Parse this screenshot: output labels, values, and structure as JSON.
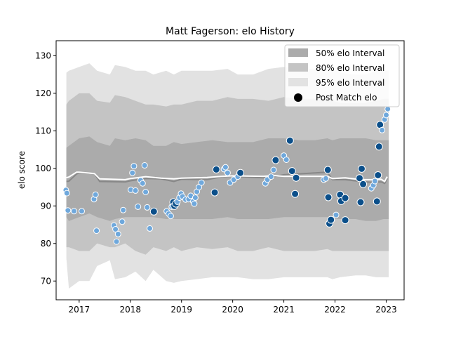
{
  "chart_data": {
    "type": "scatter",
    "title": "Matt Fagerson: elo History",
    "xlabel": "",
    "ylabel": "elo score",
    "xlim": [
      2016.55,
      2023.35
    ],
    "ylim": [
      65,
      134
    ],
    "x_ticks": [
      2017,
      2018,
      2019,
      2020,
      2021,
      2022,
      2023
    ],
    "x_tick_labels": [
      "2017",
      "2018",
      "2019",
      "2020",
      "2021",
      "2022",
      "2023"
    ],
    "y_ticks": [
      70,
      80,
      90,
      100,
      110,
      120,
      130
    ],
    "y_tick_labels": [
      "70",
      "80",
      "90",
      "100",
      "110",
      "120",
      "130"
    ],
    "grid": false,
    "legend_position": "top-right",
    "legend": [
      {
        "label": "50% elo Interval",
        "kind": "band",
        "color": "#ababab"
      },
      {
        "label": "80% elo Interval",
        "kind": "band",
        "color": "#c4c4c4"
      },
      {
        "label": "95% elo Interval",
        "kind": "band",
        "color": "#e2e2e2"
      },
      {
        "label": "Post Match elo",
        "kind": "marker",
        "color": "#000000"
      }
    ],
    "colors": {
      "band50": "#ababab",
      "band80": "#c4c4c4",
      "band95": "#e2e2e2",
      "mean_line": "#888888",
      "median_line": "#ffffff",
      "point_light": "#6fa8dc",
      "point_dark": "#0b4f8a"
    },
    "bands": {
      "x": [
        2016.75,
        2016.8,
        2017.0,
        2017.2,
        2017.35,
        2017.6,
        2017.7,
        2017.9,
        2018.1,
        2018.3,
        2018.45,
        2018.7,
        2018.85,
        2019.0,
        2019.3,
        2019.6,
        2019.9,
        2020.1,
        2020.4,
        2020.7,
        2021.0,
        2021.3,
        2021.6,
        2021.85,
        2021.95,
        2022.1,
        2022.4,
        2022.6,
        2022.8,
        2022.95,
        2023.05
      ],
      "p95_hi": [
        125.5,
        126,
        127,
        128,
        126,
        125,
        127.5,
        127,
        126,
        126,
        125,
        126,
        125,
        126,
        126,
        126,
        126.5,
        125,
        125,
        126.5,
        127,
        126.5,
        126.5,
        128,
        126.5,
        125.5,
        125,
        125,
        126,
        126,
        126
      ],
      "p95_lo": [
        76,
        68,
        70,
        70,
        74,
        75.5,
        70.5,
        71,
        72.5,
        70,
        73,
        70,
        69.5,
        70,
        70.5,
        71,
        71,
        71,
        70.5,
        70.5,
        71,
        71,
        71,
        71,
        70.5,
        71,
        71.5,
        71.5,
        71,
        71,
        71
      ],
      "p80_hi": [
        117,
        118,
        120,
        120,
        118,
        117.5,
        119.5,
        119,
        118,
        117,
        117,
        116.5,
        117,
        117,
        118,
        118,
        119,
        118.5,
        118.5,
        118,
        119,
        118.5,
        118.5,
        119,
        118,
        117.5,
        117.5,
        117.5,
        118,
        118.5,
        118.5
      ],
      "p80_lo": [
        79,
        79,
        78,
        78,
        80,
        79,
        79,
        80,
        78,
        77,
        79,
        78,
        79,
        78,
        79,
        78.5,
        79,
        78,
        78,
        79,
        78,
        78,
        78,
        78.5,
        78,
        78,
        78,
        78,
        78,
        78,
        78
      ],
      "p50_hi": [
        105.5,
        106,
        108,
        108.5,
        107,
        106,
        108,
        107.5,
        108,
        107.5,
        106,
        106,
        107,
        106.5,
        107,
        107.5,
        107,
        107,
        107,
        108,
        108,
        107.5,
        107.5,
        108,
        107.5,
        108,
        108,
        108,
        107.5,
        107.5,
        107.5
      ],
      "p50_lo": [
        87,
        86,
        87,
        88,
        87,
        86,
        86.5,
        87,
        87,
        87,
        87,
        86.5,
        86.5,
        86.5,
        86.5,
        86.5,
        87,
        86.5,
        86.5,
        86.5,
        87,
        87,
        87,
        87,
        86.5,
        86.5,
        86.5,
        86,
        86,
        86.5,
        86.5
      ]
    },
    "lines": {
      "mean_x": [
        2016.75,
        2016.8,
        2016.95,
        2017.0,
        2017.3,
        2017.4,
        2017.9,
        2018.0,
        2018.3,
        2018.6,
        2018.85,
        2019.0,
        2019.5,
        2019.8,
        2020.0,
        2020.6,
        2020.8,
        2021.0,
        2021.5,
        2021.85,
        2021.95,
        2022.2,
        2022.5,
        2022.7,
        2022.9,
        2022.97,
        2023.02
      ],
      "mean_y": [
        96.5,
        96.6,
        98.5,
        98.8,
        98.6,
        96.5,
        96.4,
        96.7,
        97.3,
        97.2,
        96.5,
        97.1,
        97.0,
        97.8,
        97.9,
        97.5,
        97.8,
        98.3,
        98.7,
        99.0,
        97.0,
        97.0,
        96.5,
        96.3,
        96.4,
        96.0,
        97.3
      ],
      "median_x": [
        2016.75,
        2016.8,
        2016.95,
        2017.0,
        2017.3,
        2017.4,
        2017.9,
        2018.0,
        2018.3,
        2018.6,
        2018.85,
        2019.0,
        2019.5,
        2019.8,
        2020.0,
        2020.6,
        2020.8,
        2021.0,
        2021.5,
        2021.85,
        2021.95,
        2022.2,
        2022.5,
        2022.7,
        2022.9,
        2022.97,
        2023.02
      ],
      "median_y": [
        97.5,
        97.7,
        99.0,
        99.0,
        98.6,
        97.2,
        97.0,
        97.3,
        97.8,
        97.4,
        97.2,
        97.4,
        97.6,
        97.9,
        98.0,
        97.9,
        98.1,
        97.9,
        97.9,
        97.9,
        97.3,
        97.5,
        97.0,
        97.0,
        97.1,
        96.5,
        97.8
      ]
    },
    "series": [
      {
        "name": "Post Match elo",
        "points": [
          {
            "x": 2016.74,
            "y": 94.2,
            "tone": "light"
          },
          {
            "x": 2016.76,
            "y": 93.4,
            "tone": "light"
          },
          {
            "x": 2016.78,
            "y": 88.8,
            "tone": "light"
          },
          {
            "x": 2016.9,
            "y": 88.6,
            "tone": "light"
          },
          {
            "x": 2017.05,
            "y": 88.6,
            "tone": "light"
          },
          {
            "x": 2017.29,
            "y": 91.8,
            "tone": "light"
          },
          {
            "x": 2017.32,
            "y": 93.0,
            "tone": "light"
          },
          {
            "x": 2017.34,
            "y": 83.4,
            "tone": "light"
          },
          {
            "x": 2017.68,
            "y": 84.8,
            "tone": "light"
          },
          {
            "x": 2017.71,
            "y": 83.8,
            "tone": "light"
          },
          {
            "x": 2017.73,
            "y": 80.5,
            "tone": "light"
          },
          {
            "x": 2017.76,
            "y": 82.5,
            "tone": "light"
          },
          {
            "x": 2017.84,
            "y": 85.8,
            "tone": "light"
          },
          {
            "x": 2017.86,
            "y": 88.9,
            "tone": "light"
          },
          {
            "x": 2018.01,
            "y": 94.3,
            "tone": "light"
          },
          {
            "x": 2018.04,
            "y": 98.8,
            "tone": "light"
          },
          {
            "x": 2018.07,
            "y": 100.6,
            "tone": "light"
          },
          {
            "x": 2018.1,
            "y": 94.1,
            "tone": "light"
          },
          {
            "x": 2018.15,
            "y": 89.8,
            "tone": "light"
          },
          {
            "x": 2018.2,
            "y": 96.8,
            "tone": "light"
          },
          {
            "x": 2018.24,
            "y": 96.0,
            "tone": "light"
          },
          {
            "x": 2018.28,
            "y": 100.8,
            "tone": "light"
          },
          {
            "x": 2018.3,
            "y": 93.7,
            "tone": "light"
          },
          {
            "x": 2018.33,
            "y": 89.6,
            "tone": "light"
          },
          {
            "x": 2018.38,
            "y": 84.0,
            "tone": "light"
          },
          {
            "x": 2018.46,
            "y": 88.5,
            "tone": "dark"
          },
          {
            "x": 2018.71,
            "y": 88.6,
            "tone": "light"
          },
          {
            "x": 2018.75,
            "y": 87.9,
            "tone": "light"
          },
          {
            "x": 2018.79,
            "y": 87.3,
            "tone": "light"
          },
          {
            "x": 2018.81,
            "y": 89.8,
            "tone": "light"
          },
          {
            "x": 2018.84,
            "y": 91.0,
            "tone": "dark"
          },
          {
            "x": 2018.86,
            "y": 90.0,
            "tone": "dark"
          },
          {
            "x": 2018.89,
            "y": 90.6,
            "tone": "dark"
          },
          {
            "x": 2018.92,
            "y": 91.1,
            "tone": "light"
          },
          {
            "x": 2018.96,
            "y": 92.2,
            "tone": "light"
          },
          {
            "x": 2018.99,
            "y": 93.3,
            "tone": "light"
          },
          {
            "x": 2019.02,
            "y": 92.5,
            "tone": "light"
          },
          {
            "x": 2019.08,
            "y": 91.7,
            "tone": "light"
          },
          {
            "x": 2019.14,
            "y": 91.8,
            "tone": "light"
          },
          {
            "x": 2019.18,
            "y": 92.7,
            "tone": "light"
          },
          {
            "x": 2019.23,
            "y": 91.2,
            "tone": "light"
          },
          {
            "x": 2019.25,
            "y": 90.6,
            "tone": "light"
          },
          {
            "x": 2019.27,
            "y": 92.2,
            "tone": "light"
          },
          {
            "x": 2019.3,
            "y": 93.8,
            "tone": "light"
          },
          {
            "x": 2019.34,
            "y": 95.0,
            "tone": "light"
          },
          {
            "x": 2019.39,
            "y": 96.2,
            "tone": "light"
          },
          {
            "x": 2019.65,
            "y": 93.6,
            "tone": "dark"
          },
          {
            "x": 2019.68,
            "y": 99.7,
            "tone": "dark"
          },
          {
            "x": 2019.83,
            "y": 99.8,
            "tone": "light"
          },
          {
            "x": 2019.86,
            "y": 100.3,
            "tone": "light"
          },
          {
            "x": 2019.9,
            "y": 98.8,
            "tone": "light"
          },
          {
            "x": 2019.95,
            "y": 96.2,
            "tone": "light"
          },
          {
            "x": 2020.02,
            "y": 97.0,
            "tone": "light"
          },
          {
            "x": 2020.1,
            "y": 97.8,
            "tone": "light"
          },
          {
            "x": 2020.15,
            "y": 98.8,
            "tone": "dark"
          },
          {
            "x": 2020.64,
            "y": 96.0,
            "tone": "light"
          },
          {
            "x": 2020.68,
            "y": 97.0,
            "tone": "light"
          },
          {
            "x": 2020.75,
            "y": 97.8,
            "tone": "light"
          },
          {
            "x": 2020.8,
            "y": 99.6,
            "tone": "light"
          },
          {
            "x": 2020.84,
            "y": 102.2,
            "tone": "dark"
          },
          {
            "x": 2021.0,
            "y": 103.4,
            "tone": "light"
          },
          {
            "x": 2021.05,
            "y": 102.3,
            "tone": "light"
          },
          {
            "x": 2021.12,
            "y": 107.4,
            "tone": "dark"
          },
          {
            "x": 2021.16,
            "y": 99.3,
            "tone": "dark"
          },
          {
            "x": 2021.22,
            "y": 93.2,
            "tone": "dark"
          },
          {
            "x": 2021.24,
            "y": 97.5,
            "tone": "dark"
          },
          {
            "x": 2021.78,
            "y": 97.0,
            "tone": "light"
          },
          {
            "x": 2021.82,
            "y": 97.3,
            "tone": "light"
          },
          {
            "x": 2021.86,
            "y": 99.6,
            "tone": "dark"
          },
          {
            "x": 2021.87,
            "y": 92.3,
            "tone": "dark"
          },
          {
            "x": 2021.89,
            "y": 85.3,
            "tone": "dark"
          },
          {
            "x": 2021.92,
            "y": 86.3,
            "tone": "dark"
          },
          {
            "x": 2022.02,
            "y": 87.6,
            "tone": "light"
          },
          {
            "x": 2022.1,
            "y": 93.0,
            "tone": "dark"
          },
          {
            "x": 2022.12,
            "y": 91.3,
            "tone": "dark"
          },
          {
            "x": 2022.2,
            "y": 92.1,
            "tone": "dark"
          },
          {
            "x": 2022.2,
            "y": 86.2,
            "tone": "dark"
          },
          {
            "x": 2022.48,
            "y": 97.4,
            "tone": "dark"
          },
          {
            "x": 2022.5,
            "y": 91.0,
            "tone": "dark"
          },
          {
            "x": 2022.52,
            "y": 99.9,
            "tone": "dark"
          },
          {
            "x": 2022.55,
            "y": 95.8,
            "tone": "dark"
          },
          {
            "x": 2022.71,
            "y": 94.7,
            "tone": "light"
          },
          {
            "x": 2022.75,
            "y": 95.5,
            "tone": "light"
          },
          {
            "x": 2022.78,
            "y": 96.6,
            "tone": "light"
          },
          {
            "x": 2022.82,
            "y": 91.2,
            "tone": "dark"
          },
          {
            "x": 2022.84,
            "y": 98.2,
            "tone": "dark"
          },
          {
            "x": 2022.86,
            "y": 105.8,
            "tone": "dark"
          },
          {
            "x": 2022.88,
            "y": 111.6,
            "tone": "dark"
          },
          {
            "x": 2022.92,
            "y": 110.2,
            "tone": "light"
          },
          {
            "x": 2022.97,
            "y": 113.0,
            "tone": "light"
          },
          {
            "x": 2023.0,
            "y": 114.2,
            "tone": "light"
          },
          {
            "x": 2023.03,
            "y": 115.8,
            "tone": "light"
          }
        ]
      }
    ]
  }
}
